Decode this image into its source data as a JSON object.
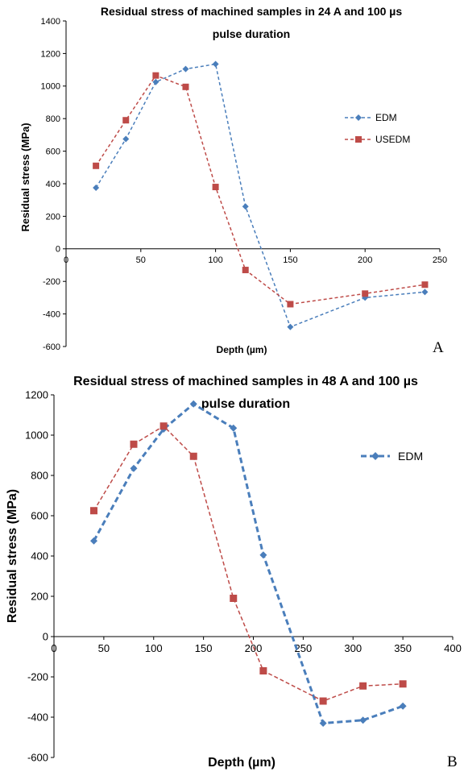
{
  "chart_data": [
    {
      "type": "line",
      "title_lines": [
        "Residual stress of machined samples in 24 A and 100 µs",
        "pulse duration"
      ],
      "xlabel": "Depth (µm)",
      "ylabel": "Residual stress (MPa)",
      "xlim": [
        0,
        250
      ],
      "ylim": [
        -600,
        1400
      ],
      "xticks": [
        0,
        50,
        100,
        150,
        200,
        250
      ],
      "yticks": [
        -600,
        -400,
        -200,
        0,
        200,
        400,
        600,
        800,
        1000,
        1200,
        1400
      ],
      "legend_position": "right",
      "panel_label": "A",
      "series": [
        {
          "name": "EDM",
          "color": "#4a7ebb",
          "marker": "diamond",
          "x": [
            20,
            40,
            60,
            80,
            100,
            120,
            150,
            200,
            240
          ],
          "y": [
            375,
            675,
            1025,
            1105,
            1135,
            260,
            -480,
            -300,
            -265
          ]
        },
        {
          "name": "USEDM",
          "color": "#be4b48",
          "marker": "square",
          "x": [
            20,
            40,
            60,
            80,
            100,
            120,
            150,
            200,
            240
          ],
          "y": [
            510,
            790,
            1065,
            995,
            380,
            -130,
            -340,
            -275,
            -220
          ]
        }
      ]
    },
    {
      "type": "line",
      "title_lines": [
        "Residual stress of machined samples in 48 A and 100 µs",
        "pulse duration"
      ],
      "xlabel": "Depth (µm)",
      "ylabel": "Residual stress (MPa)",
      "xlim": [
        0,
        400
      ],
      "ylim": [
        -600,
        1200
      ],
      "xticks": [
        0,
        50,
        100,
        150,
        200,
        250,
        300,
        350,
        400
      ],
      "yticks": [
        -600,
        -400,
        -200,
        0,
        200,
        400,
        600,
        800,
        1000,
        1200
      ],
      "legend_position": "top-right",
      "panel_label": "B",
      "series": [
        {
          "name": "EDM",
          "color": "#4a7ebb",
          "marker": "diamond",
          "x": [
            40,
            80,
            110,
            140,
            180,
            210,
            270,
            310,
            350
          ],
          "y": [
            475,
            835,
            1030,
            1155,
            1035,
            405,
            -430,
            -415,
            -345
          ]
        },
        {
          "name": "",
          "color": "#be4b48",
          "marker": "square",
          "x": [
            40,
            80,
            110,
            140,
            180,
            210,
            270,
            310,
            350
          ],
          "y": [
            625,
            955,
            1045,
            895,
            190,
            -170,
            -320,
            -245,
            -235
          ]
        }
      ]
    }
  ]
}
